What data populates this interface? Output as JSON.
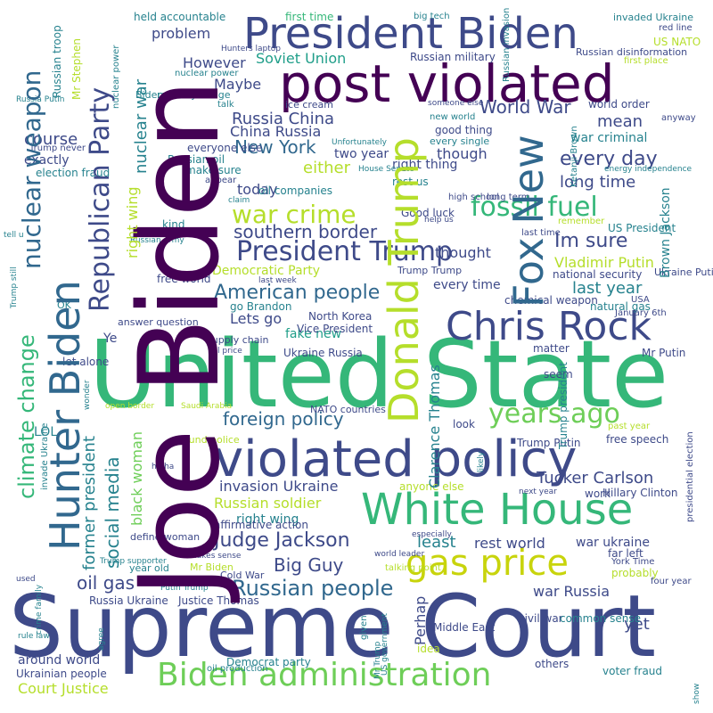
{
  "palette": {
    "purple": "#440154",
    "deep-indigo": "#482677",
    "indigo": "#3e4a89",
    "blue": "#31688e",
    "teal-blue": "#26828e",
    "teal": "#1f9e89",
    "sea-green": "#35b779",
    "green": "#6ece58",
    "lime": "#b5de2b",
    "yellow": "#c8d40c"
  },
  "words": [
    {
      "text": "Supreme Court",
      "color": "indigo"
    },
    {
      "text": "United State",
      "color": "sea-green"
    },
    {
      "text": "Joe Biden",
      "color": "purple"
    },
    {
      "text": "post violated",
      "color": "purple"
    },
    {
      "text": "President Biden",
      "color": "indigo"
    },
    {
      "text": "violated policy",
      "color": "indigo"
    },
    {
      "text": "White House",
      "color": "sea-green"
    },
    {
      "text": "Biden administration",
      "color": "green"
    },
    {
      "text": "Chris Rock",
      "color": "indigo"
    },
    {
      "text": "Hunter Biden",
      "color": "blue"
    },
    {
      "text": "Donald Trump",
      "color": "lime"
    },
    {
      "text": "Fox New",
      "color": "blue"
    },
    {
      "text": "gas price",
      "color": "yellow"
    },
    {
      "text": "years ago",
      "color": "green"
    },
    {
      "text": "fossil fuel",
      "color": "sea-green"
    },
    {
      "text": "President Trump",
      "color": "indigo"
    },
    {
      "text": "war crime",
      "color": "lime"
    },
    {
      "text": "Republican Party",
      "color": "indigo"
    },
    {
      "text": "climate change",
      "color": "sea-green"
    },
    {
      "text": "nuclear weapon",
      "color": "blue"
    },
    {
      "text": "Judge Jackson",
      "color": "indigo"
    },
    {
      "text": "Russian people",
      "color": "blue"
    },
    {
      "text": "Im sure",
      "color": "indigo"
    },
    {
      "text": "American people",
      "color": "blue"
    },
    {
      "text": "World War",
      "color": "indigo"
    },
    {
      "text": "every day",
      "color": "indigo"
    },
    {
      "text": "Big Guy",
      "color": "indigo"
    },
    {
      "text": "New York",
      "color": "blue"
    },
    {
      "text": "Court Justice",
      "color": "lime"
    },
    {
      "text": "foreign policy",
      "color": "blue"
    },
    {
      "text": "southern border",
      "color": "indigo"
    },
    {
      "text": "Russia China",
      "color": "indigo"
    },
    {
      "text": "China Russia",
      "color": "indigo"
    },
    {
      "text": "Soviet Union",
      "color": "teal"
    },
    {
      "text": "long time",
      "color": "indigo"
    },
    {
      "text": "last year",
      "color": "teal"
    },
    {
      "text": "Tucker Carlson",
      "color": "indigo"
    },
    {
      "text": "invasion Ukraine",
      "color": "indigo"
    },
    {
      "text": "Vladimir Putin",
      "color": "lime"
    },
    {
      "text": "oil gas",
      "color": "indigo"
    },
    {
      "text": "social media",
      "color": "teal"
    },
    {
      "text": "former president",
      "color": "teal"
    },
    {
      "text": "war Russia",
      "color": "indigo"
    },
    {
      "text": "Russian soldier",
      "color": "lime"
    },
    {
      "text": "rest world",
      "color": "indigo"
    },
    {
      "text": "least",
      "color": "teal"
    },
    {
      "text": "mean",
      "color": "indigo"
    },
    {
      "text": "course",
      "color": "indigo"
    },
    {
      "text": "either",
      "color": "lime"
    },
    {
      "text": "Maybe",
      "color": "indigo"
    },
    {
      "text": "However",
      "color": "indigo"
    },
    {
      "text": "problem",
      "color": "indigo"
    },
    {
      "text": "today",
      "color": "indigo"
    },
    {
      "text": "though",
      "color": "indigo"
    },
    {
      "text": "thought",
      "color": "indigo"
    },
    {
      "text": "nuclear war",
      "color": "teal"
    },
    {
      "text": "fake new",
      "color": "teal"
    },
    {
      "text": "Democratic Party",
      "color": "lime"
    },
    {
      "text": "right wing",
      "color": "lime"
    },
    {
      "text": "war ukraine",
      "color": "teal"
    },
    {
      "text": "Russian military",
      "color": "indigo"
    },
    {
      "text": "Lets go",
      "color": "indigo"
    },
    {
      "text": "Ye",
      "color": "indigo"
    },
    {
      "text": "guess",
      "color": "indigo"
    },
    {
      "text": "black woman",
      "color": "green"
    },
    {
      "text": "Clarence Thomas",
      "color": "teal"
    },
    {
      "text": "Perhap",
      "color": "indigo"
    },
    {
      "text": "yet",
      "color": "indigo"
    },
    {
      "text": "LOL",
      "color": "teal"
    },
    {
      "text": "exactly",
      "color": "indigo"
    },
    {
      "text": "war criminal",
      "color": "teal"
    },
    {
      "text": "two year",
      "color": "indigo"
    },
    {
      "text": "good thing",
      "color": "indigo"
    },
    {
      "text": "right thing",
      "color": "indigo"
    },
    {
      "text": "rest us",
      "color": "teal"
    },
    {
      "text": "oil companies",
      "color": "teal"
    },
    {
      "text": "make sure",
      "color": "teal"
    },
    {
      "text": "Russian oil",
      "color": "teal"
    },
    {
      "text": "every time",
      "color": "indigo"
    },
    {
      "text": "natural gas",
      "color": "teal"
    },
    {
      "text": "national security",
      "color": "indigo"
    },
    {
      "text": "free world",
      "color": "indigo"
    },
    {
      "text": "North Korea",
      "color": "indigo"
    },
    {
      "text": "Vice President",
      "color": "indigo"
    },
    {
      "text": "go Brandon",
      "color": "teal"
    },
    {
      "text": "Ukraine Russia",
      "color": "indigo"
    },
    {
      "text": "chemical weapon",
      "color": "indigo"
    },
    {
      "text": "Brown Jackson",
      "color": "teal"
    },
    {
      "text": "Trump president",
      "color": "teal"
    },
    {
      "text": "Trump Putin",
      "color": "indigo"
    },
    {
      "text": "free speech",
      "color": "indigo"
    },
    {
      "text": "Hillary Clinton",
      "color": "indigo"
    },
    {
      "text": "Mr Putin",
      "color": "indigo"
    },
    {
      "text": "anyone else",
      "color": "lime"
    },
    {
      "text": "matter",
      "color": "indigo"
    },
    {
      "text": "seem",
      "color": "indigo"
    },
    {
      "text": "look",
      "color": "indigo"
    },
    {
      "text": "Middle East",
      "color": "indigo"
    },
    {
      "text": "civil war",
      "color": "indigo"
    },
    {
      "text": "common sense",
      "color": "teal"
    },
    {
      "text": "idea",
      "color": "lime"
    },
    {
      "text": "voter fraud",
      "color": "teal"
    },
    {
      "text": "others",
      "color": "indigo"
    },
    {
      "text": "Democrat party",
      "color": "teal"
    },
    {
      "text": "around world",
      "color": "indigo"
    },
    {
      "text": "Ukrainian people",
      "color": "indigo"
    },
    {
      "text": "Russia Ukraine",
      "color": "indigo"
    },
    {
      "text": "Justice Thomas",
      "color": "indigo"
    },
    {
      "text": "affirmative action",
      "color": "indigo"
    },
    {
      "text": "define woman",
      "color": "indigo"
    },
    {
      "text": "work",
      "color": "indigo"
    },
    {
      "text": "Cold War",
      "color": "indigo"
    },
    {
      "text": "Mr Biden",
      "color": "lime"
    },
    {
      "text": "year old",
      "color": "teal"
    },
    {
      "text": "far left",
      "color": "indigo"
    },
    {
      "text": "probably",
      "color": "lime"
    },
    {
      "text": "York Time",
      "color": "indigo"
    },
    {
      "text": "four year",
      "color": "indigo"
    },
    {
      "text": "US NATO",
      "color": "lime"
    },
    {
      "text": "invaded Ukraine",
      "color": "teal"
    },
    {
      "text": "red line",
      "color": "indigo"
    },
    {
      "text": "first place",
      "color": "lime"
    },
    {
      "text": "Russian disinformation",
      "color": "indigo"
    },
    {
      "text": "world order",
      "color": "indigo"
    },
    {
      "text": "anyway",
      "color": "indigo"
    },
    {
      "text": "Ketanji Brown",
      "color": "teal"
    },
    {
      "text": "held accountable",
      "color": "teal"
    },
    {
      "text": "first time",
      "color": "sea-green"
    },
    {
      "text": "big tech",
      "color": "teal"
    },
    {
      "text": "Russian troop",
      "color": "teal"
    },
    {
      "text": "Mr Stephen",
      "color": "lime"
    },
    {
      "text": "nuclear power",
      "color": "teal"
    },
    {
      "text": "regime change",
      "color": "teal"
    },
    {
      "text": "Biden family",
      "color": "teal"
    },
    {
      "text": "talk",
      "color": "teal"
    },
    {
      "text": "ice cream",
      "color": "teal"
    },
    {
      "text": "someone else",
      "color": "indigo"
    },
    {
      "text": "new world",
      "color": "indigo"
    },
    {
      "text": "every single",
      "color": "teal"
    },
    {
      "text": "Russian invasion",
      "color": "teal"
    },
    {
      "text": "Unfortunately",
      "color": "teal"
    },
    {
      "text": "House Senate",
      "color": "teal"
    },
    {
      "text": "Trump never",
      "color": "teal"
    },
    {
      "text": "Russia Putin",
      "color": "indigo"
    },
    {
      "text": "election fraud",
      "color": "teal"
    },
    {
      "text": "tell u",
      "color": "teal"
    },
    {
      "text": "everyone else",
      "color": "teal"
    },
    {
      "text": "appear",
      "color": "indigo"
    },
    {
      "text": "claim",
      "color": "indigo"
    },
    {
      "text": "Good luck",
      "color": "teal"
    },
    {
      "text": "kind",
      "color": "indigo"
    },
    {
      "text": "instead",
      "color": "teal"
    },
    {
      "text": "Russian army",
      "color": "teal"
    },
    {
      "text": "high school",
      "color": "teal"
    },
    {
      "text": "long term",
      "color": "indigo"
    },
    {
      "text": "last time",
      "color": "indigo"
    },
    {
      "text": "remember",
      "color": "indigo"
    },
    {
      "text": "help us",
      "color": "lime"
    },
    {
      "text": "US President",
      "color": "indigo"
    },
    {
      "text": "Trump Trump",
      "color": "teal"
    },
    {
      "text": "Ukraine Putin",
      "color": "indigo"
    },
    {
      "text": "USA",
      "color": "indigo"
    },
    {
      "text": "January 6th",
      "color": "indigo"
    },
    {
      "text": "last week",
      "color": "indigo"
    },
    {
      "text": "answer question",
      "color": "indigo"
    },
    {
      "text": "supply chain",
      "color": "indigo"
    },
    {
      "text": "oil price",
      "color": "indigo"
    },
    {
      "text": "let alone",
      "color": "indigo"
    },
    {
      "text": "OK",
      "color": "indigo"
    },
    {
      "text": "wonder",
      "color": "teal"
    },
    {
      "text": "open border",
      "color": "teal"
    },
    {
      "text": "Saudi Arabia",
      "color": "lime"
    },
    {
      "text": "NATO countries",
      "color": "lime"
    },
    {
      "text": "likely",
      "color": "indigo"
    },
    {
      "text": "defund police",
      "color": "teal"
    },
    {
      "text": "ha ha",
      "color": "lime"
    },
    {
      "text": "next year",
      "color": "indigo"
    },
    {
      "text": "past year",
      "color": "indigo"
    },
    {
      "text": "especially",
      "color": "lime"
    },
    {
      "text": "world leader",
      "color": "indigo"
    },
    {
      "text": "invade Ukraine",
      "color": "indigo"
    },
    {
      "text": "Trump supporter",
      "color": "teal"
    },
    {
      "text": "makes sense",
      "color": "teal"
    },
    {
      "text": "Putin Trump",
      "color": "indigo"
    },
    {
      "text": "talking point",
      "color": "teal"
    },
    {
      "text": "given",
      "color": "lime"
    },
    {
      "text": "Mr Trump",
      "color": "teal"
    },
    {
      "text": "US government",
      "color": "teal"
    },
    {
      "text": "oil production",
      "color": "teal"
    },
    {
      "text": "agree",
      "color": "teal"
    },
    {
      "text": "crime family",
      "color": "teal"
    },
    {
      "text": "rule law",
      "color": "teal"
    },
    {
      "text": "used",
      "color": "teal"
    },
    {
      "text": "Trump still",
      "color": "indigo"
    },
    {
      "text": "presidential election",
      "color": "teal"
    },
    {
      "text": "Hunters laptop",
      "color": "indigo"
    },
    {
      "text": "energy independence",
      "color": "teal"
    },
    {
      "text": "show",
      "color": "indigo"
    },
    {
      "text": "fact",
      "color": "teal"
    }
  ]
}
